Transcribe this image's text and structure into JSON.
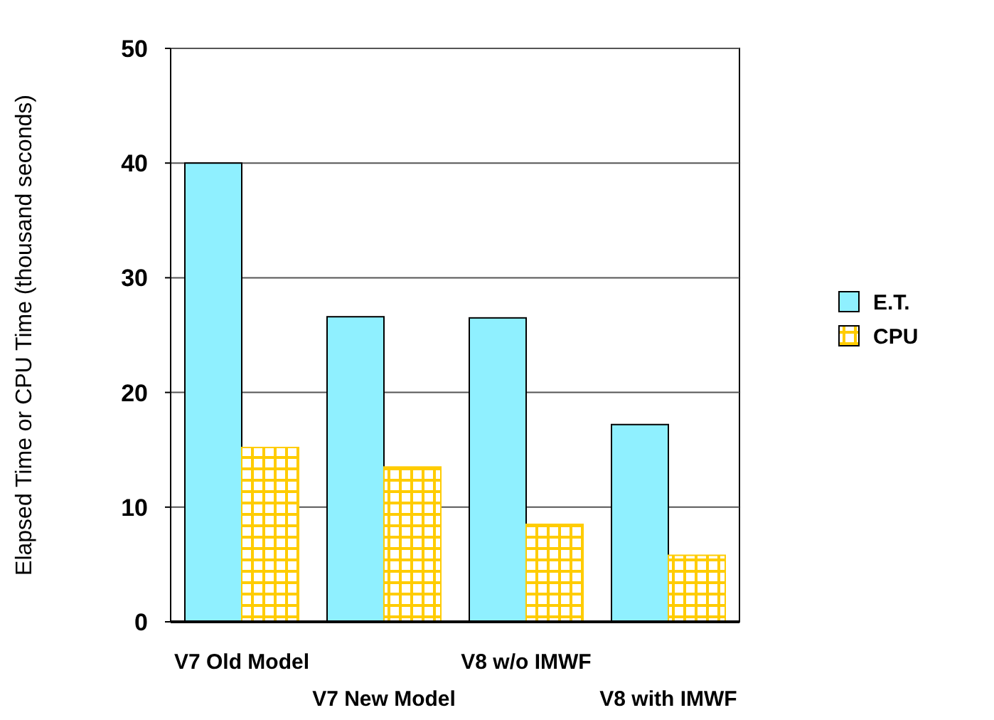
{
  "chart_data": {
    "type": "bar",
    "ylabel": "Elapsed Time or CPU Time (thousand seconds)",
    "categories": [
      "V7 Old Model",
      "V7 New Model",
      "V8 w/o IMWF",
      "V8 with IMWF"
    ],
    "series": [
      {
        "name": "E.T.",
        "color": "#8ff0ff",
        "values": [
          40,
          26.6,
          26.5,
          17.2
        ]
      },
      {
        "name": "CPU",
        "color": "#ffcc00",
        "values": [
          15.2,
          13.5,
          8.5,
          5.8
        ]
      }
    ],
    "ylim": [
      0,
      50
    ],
    "yticks": [
      0,
      10,
      20,
      30,
      40,
      50
    ],
    "grid": "y",
    "legend": "right"
  }
}
